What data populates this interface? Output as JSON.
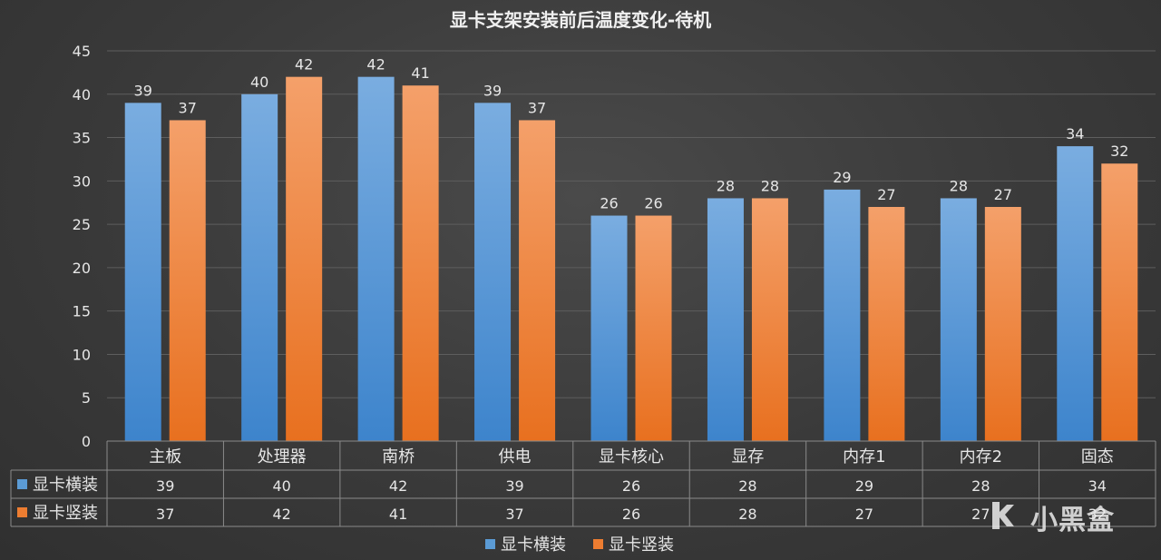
{
  "chart_data": {
    "type": "bar",
    "title": "显卡支架安装前后温度变化-待机",
    "categories": [
      "主板",
      "处理器",
      "南桥",
      "供电",
      "显卡核心",
      "显存",
      "内存1",
      "内存2",
      "固态"
    ],
    "series": [
      {
        "name": "显卡横装",
        "values": [
          39,
          40,
          42,
          39,
          26,
          28,
          29,
          28,
          34
        ],
        "color": "#5b9bd5"
      },
      {
        "name": "显卡竖装",
        "values": [
          37,
          42,
          41,
          37,
          26,
          28,
          27,
          27,
          32
        ],
        "color": "#ed7d31"
      }
    ],
    "ylim": [
      0,
      45
    ],
    "yticks": [
      0,
      5,
      10,
      15,
      20,
      25,
      30,
      35,
      40,
      45
    ],
    "grid": true,
    "data_table": true,
    "legend_position": "bottom"
  },
  "watermark": {
    "text": "小黑盒",
    "icon": "heybox-logo-icon"
  }
}
